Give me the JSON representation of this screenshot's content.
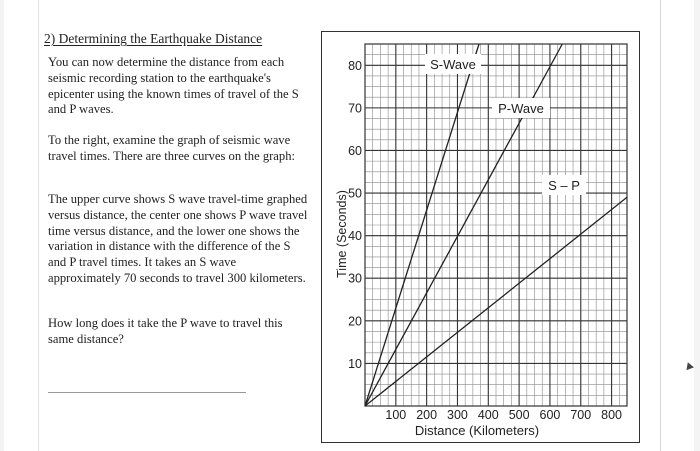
{
  "question": {
    "title": "2) Determining the Earthquake Distance",
    "paragraphs": [
      "You can now determine the distance from each seismic recording station to the earthquake's epicenter using the known times of travel of the S and P waves.",
      "To the right, examine the graph of seismic wave travel times. There are three curves on the graph:",
      "The upper curve shows S wave travel-time graphed versus distance, the center one shows P wave travel time versus distance, and the lower one shows the variation in distance with the difference of the S and P travel times. It takes an S wave approximately 70 seconds to travel 300 kilometers.",
      "How long does it take the P wave to travel this same distance?"
    ]
  },
  "chart_data": {
    "type": "line",
    "title": "",
    "xlabel": "Distance (Kilometers)",
    "ylabel": "Time (Seconds)",
    "xlim": [
      0,
      850
    ],
    "ylim": [
      0,
      85
    ],
    "x_ticks": [
      "100",
      "200",
      "300",
      "400",
      "500",
      "600",
      "700",
      "800"
    ],
    "y_ticks": [
      "10",
      "20",
      "30",
      "40",
      "50",
      "60",
      "70",
      "80"
    ],
    "grid": true,
    "series": [
      {
        "name": "S-Wave",
        "x": [
          0,
          370
        ],
        "y": [
          0,
          85
        ]
      },
      {
        "name": "P-Wave",
        "x": [
          0,
          640
        ],
        "y": [
          0,
          85
        ]
      },
      {
        "name": "S – P",
        "x": [
          0,
          850
        ],
        "y": [
          0,
          49
        ]
      }
    ]
  }
}
